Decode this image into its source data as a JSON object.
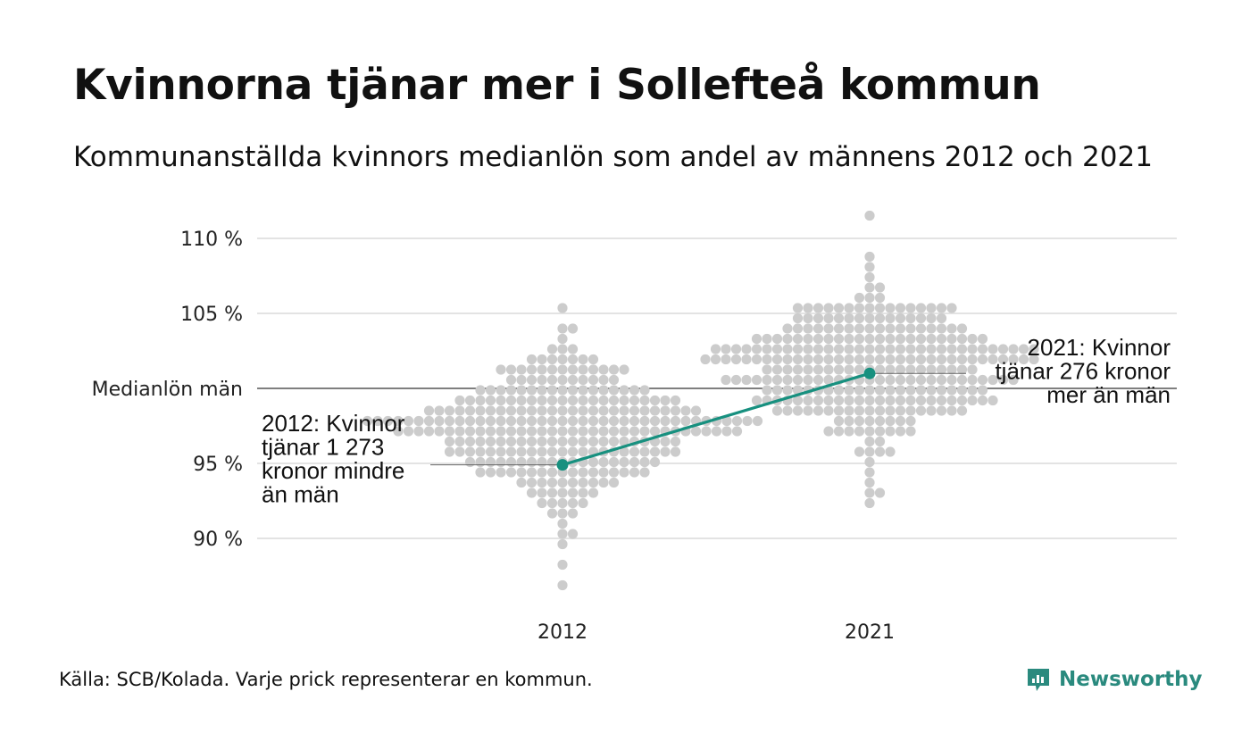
{
  "title": "Kvinnorna tjänar mer i Sollefteå kommun",
  "subtitle": "Kommunanställda kvinnors medianlön som andel av männens 2012 och 2021",
  "source": "Källa: SCB/Kolada. Varje prick representerar en kommun.",
  "logo": {
    "text": "Newsworthy",
    "icon": "newsworthy-logo-icon",
    "color": "#2a8a7e"
  },
  "colors": {
    "dots": "#cccccc",
    "highlight": "#17907f",
    "gridline": "#e3e3e3",
    "reference_line": "#333333",
    "text": "#111111"
  },
  "chart_data": {
    "type": "scatter",
    "subtype": "beeswarm",
    "categories": [
      "2012",
      "2021"
    ],
    "ylim": [
      86,
      111.5
    ],
    "y_ticks": [
      {
        "value": 90,
        "label": "90 %"
      },
      {
        "value": 95,
        "label": "95 %"
      },
      {
        "value": 100,
        "label": "Medianlön män"
      },
      {
        "value": 105,
        "label": "105 %"
      },
      {
        "value": 110,
        "label": "110 %"
      }
    ],
    "grid": true,
    "reference_line": {
      "value": 100,
      "label": "Medianlön män"
    },
    "swarms": [
      {
        "category": "2012",
        "count": 290,
        "median": 97.4,
        "spread": 2.6,
        "min": 86.7,
        "max": 105.2
      },
      {
        "category": "2021",
        "count": 290,
        "median": 101.5,
        "spread": 2.6,
        "min": 92.5,
        "max": 111.4
      }
    ],
    "highlight": {
      "series": "Sollefteå",
      "points": [
        {
          "x": "2012",
          "y": 94.9
        },
        {
          "x": "2021",
          "y": 101.0
        }
      ],
      "annotations": [
        {
          "x": "2012",
          "lines": [
            "2012: Kvinnor",
            "tjänar 1 273",
            "kronor mindre",
            "än män"
          ],
          "side": "left"
        },
        {
          "x": "2021",
          "lines": [
            "2021: Kvinnor",
            "tjänar 276 kronor",
            "mer än män"
          ],
          "side": "right"
        }
      ]
    }
  }
}
